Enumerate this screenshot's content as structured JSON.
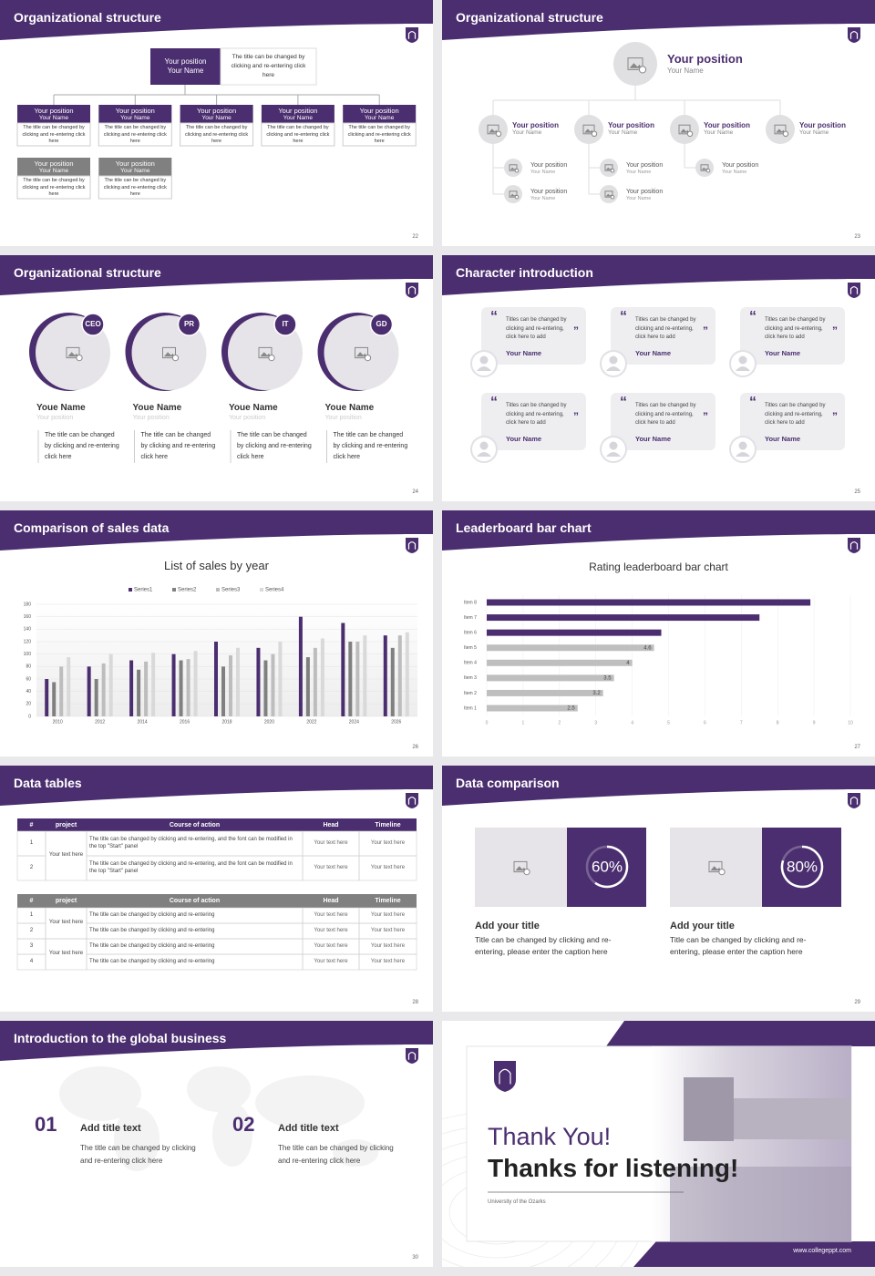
{
  "slides": [
    {
      "title": "Organizational structure",
      "page": "22",
      "top": {
        "position": "Your position",
        "name": "Your Name",
        "note": "The title can be changed by clicking and re-entering click here"
      },
      "nodes": [
        {
          "position": "Your position",
          "name": "Your Name",
          "text": "The title can be changed by clicking and re-entering click here",
          "color": "#4b2e6f"
        },
        {
          "position": "Your position",
          "name": "Your Name",
          "text": "The title can be changed by clicking and re-entering click here",
          "color": "#4b2e6f"
        },
        {
          "position": "Your position",
          "name": "Your Name",
          "text": "The title can be changed by clicking and re-entering click here",
          "color": "#4b2e6f"
        },
        {
          "position": "Your position",
          "name": "Your Name",
          "text": "The title can be changed by clicking and re-entering click here",
          "color": "#4b2e6f"
        },
        {
          "position": "Your position",
          "name": "Your Name",
          "text": "The title can be changed by clicking and re-entering click here",
          "color": "#4b2e6f"
        },
        {
          "position": "Your position",
          "name": "Your Name",
          "text": "The title can be changed by clicking and re-entering click here",
          "color": "#808080"
        },
        {
          "position": "Your position",
          "name": "Your Name",
          "text": "The title can be changed by clicking and re-entering click here",
          "color": "#808080"
        }
      ]
    },
    {
      "title": "Organizational structure",
      "page": "23",
      "top": {
        "position": "Your position",
        "name": "Your Name"
      },
      "branches": [
        {
          "position": "Your position",
          "name": "Your Name",
          "children": [
            {
              "position": "Your position",
              "name": "Your Name"
            },
            {
              "position": "Your position",
              "name": "Your Name"
            }
          ]
        },
        {
          "position": "Your position",
          "name": "Your Name",
          "children": [
            {
              "position": "Your position",
              "name": "Your Name"
            },
            {
              "position": "Your position",
              "name": "Your Name"
            }
          ]
        },
        {
          "position": "Your position",
          "name": "Your Name",
          "children": [
            {
              "position": "Your position",
              "name": "Your Name"
            }
          ]
        },
        {
          "position": "Your position",
          "name": "Your Name",
          "children": []
        }
      ]
    },
    {
      "title": "Organizational structure",
      "page": "24",
      "people": [
        {
          "badge": "CEO",
          "name": "Youe Name",
          "role": "Your position",
          "text": "The title can be changed by clicking and re-entering click here"
        },
        {
          "badge": "PR",
          "name": "Youe Name",
          "role": "Your position",
          "text": "The title can be changed by clicking and re-entering click here"
        },
        {
          "badge": "IT",
          "name": "Youe Name",
          "role": "Your position",
          "text": "The title can be changed by clicking and re-entering click here"
        },
        {
          "badge": "GD",
          "name": "Youe Name",
          "role": "Your position",
          "text": "The title can be changed by clicking and re-entering click here"
        }
      ]
    },
    {
      "title": "Character introduction",
      "page": "25",
      "quote_marks": [
        "“",
        "”"
      ],
      "cards": [
        {
          "quote": "Titles can be changed by clicking and re-entering, click here to add",
          "name": "Your Name"
        },
        {
          "quote": "Titles can be changed by clicking and re-entering, click here to add",
          "name": "Your Name"
        },
        {
          "quote": "Titles can be changed by clicking and re-entering, click here to add",
          "name": "Your Name"
        },
        {
          "quote": "Titles can be changed by clicking and re-entering, click here to add",
          "name": "Your Name"
        },
        {
          "quote": "Titles can be changed by clicking and re-entering, click here to add",
          "name": "Your Name"
        },
        {
          "quote": "Titles can be changed by clicking and re-entering, click here to add",
          "name": "Your Name"
        }
      ]
    },
    {
      "title": "Comparison of sales data",
      "page": "26",
      "chart": {
        "type": "bar",
        "title": "List of sales by year",
        "categories": [
          "2010",
          "2012",
          "2014",
          "2016",
          "2018",
          "2020",
          "2022",
          "2024",
          "2026"
        ],
        "series": [
          {
            "name": "Series1",
            "color": "#4b2e6f",
            "values": [
              60,
              80,
              90,
              100,
              120,
              110,
              160,
              150,
              130
            ]
          },
          {
            "name": "Series2",
            "color": "#808080",
            "values": [
              55,
              60,
              75,
              90,
              80,
              90,
              95,
              120,
              110
            ]
          },
          {
            "name": "Series3",
            "color": "#bdbdbd",
            "values": [
              80,
              85,
              88,
              92,
              98,
              100,
              110,
              120,
              130
            ]
          },
          {
            "name": "Series4",
            "color": "#d9d9d9",
            "values": [
              95,
              100,
              102,
              105,
              110,
              120,
              125,
              130,
              135
            ]
          }
        ],
        "ylim": [
          0,
          180
        ],
        "yticks": [
          0,
          20,
          40,
          60,
          80,
          100,
          120,
          140,
          160,
          180
        ],
        "grid": true
      }
    },
    {
      "title": "Leaderboard bar chart",
      "page": "27",
      "chart": {
        "type": "bar",
        "orientation": "horizontal",
        "title": "Rating leaderboard bar chart",
        "categories": [
          "Item 1",
          "Item 2",
          "Item 3",
          "Item 4",
          "Item 5",
          "Item 6",
          "Item 7",
          "Item 8"
        ],
        "values": [
          2.5,
          3.2,
          3.5,
          4,
          4.6,
          4.8,
          7.5,
          8.9
        ],
        "value_labels": [
          "2.5",
          "3.2",
          "3.5",
          "4",
          "4.6",
          null,
          null,
          null
        ],
        "colors": [
          "#bfbfbf",
          "#bfbfbf",
          "#bfbfbf",
          "#bfbfbf",
          "#bfbfbf",
          "#4b2e6f",
          "#4b2e6f",
          "#4b2e6f"
        ],
        "xlim": [
          0,
          10
        ],
        "xticks": [
          0,
          1,
          2,
          3,
          4,
          5,
          6,
          7,
          8,
          9,
          10
        ],
        "grid": true
      }
    },
    {
      "title": "Data tables",
      "page": "28",
      "tables": [
        {
          "header": [
            "#",
            "project",
            "Course of action",
            "Head",
            "Timeline"
          ],
          "header_color": "#4b2e6f",
          "groups": [
            {
              "project": "Your text here",
              "rows": [
                [
                  "1",
                  "The title can be changed by clicking and re-entering, and the font can be modified in the top \"Start\" panel",
                  "Your text here",
                  "Your text here"
                ],
                [
                  "2",
                  "The title can be changed by clicking and re-entering, and the font can be modified in the top \"Start\" panel",
                  "Your text here",
                  "Your text here"
                ]
              ]
            }
          ]
        },
        {
          "header": [
            "#",
            "project",
            "Course of action",
            "Head",
            "Timeline"
          ],
          "header_color": "#808080",
          "groups": [
            {
              "project": "Your text here",
              "rows": [
                [
                  "1",
                  "The title can be changed by clicking and re-entering",
                  "Your text here",
                  "Your text here"
                ],
                [
                  "2",
                  "The title can be changed by clicking and re-entering",
                  "Your text here",
                  "Your text here"
                ]
              ]
            },
            {
              "project": "Your text here",
              "rows": [
                [
                  "3",
                  "The title can be changed by clicking and re-entering",
                  "Your text here",
                  "Your text here"
                ],
                [
                  "4",
                  "The title can be changed by clicking and re-entering",
                  "Your text here",
                  "Your text here"
                ]
              ]
            }
          ]
        }
      ]
    },
    {
      "title": "Data comparison",
      "page": "29",
      "cards": [
        {
          "value": 60,
          "value_label": "60%",
          "title": "Add your title",
          "text": "Title can be changed by clicking and re-entering, please enter the caption here"
        },
        {
          "value": 80,
          "value_label": "80%",
          "title": "Add your title",
          "text": "Title can be changed by clicking and re-entering, please enter the caption here"
        }
      ]
    },
    {
      "title": "Introduction to the global business",
      "page": "30",
      "items": [
        {
          "number": "01",
          "title": "Add title text",
          "text": "The title can be changed by clicking and re-entering click here"
        },
        {
          "number": "02",
          "title": "Add title text",
          "text": "The title can be changed by clicking and re-entering click here"
        }
      ]
    },
    {
      "thanks": "Thank You!",
      "subtitle": "Thanks for listening!",
      "university": "University of the Ozarks",
      "url": "www.collegeppt.com"
    }
  ]
}
